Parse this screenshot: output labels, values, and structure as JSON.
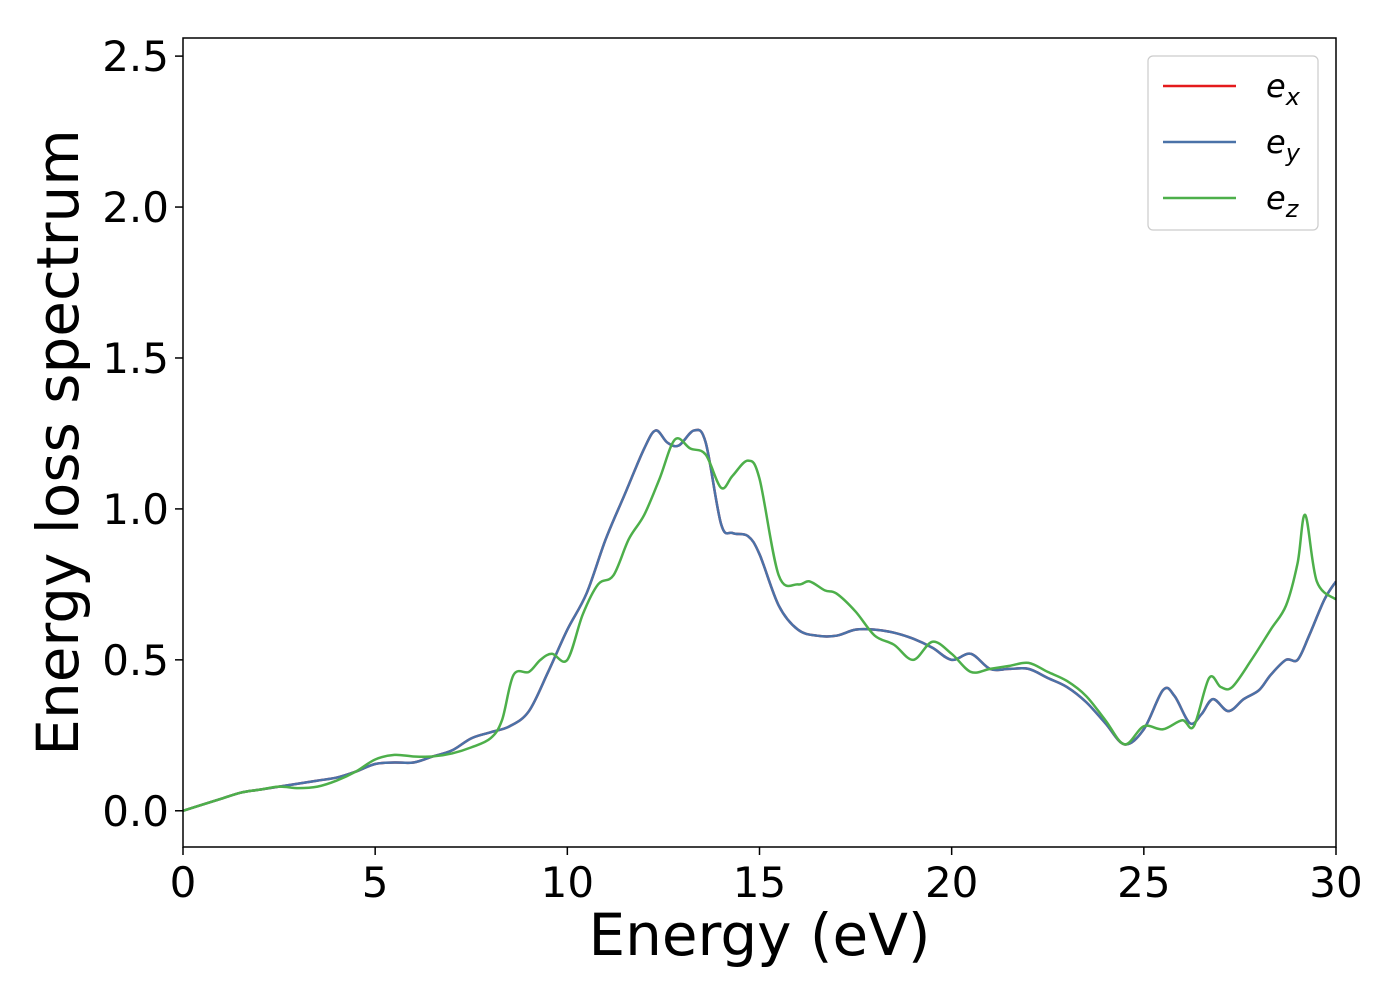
{
  "chart_data": {
    "type": "line",
    "title": "",
    "xlabel": "Energy (eV)",
    "ylabel": "Energy loss spectrum",
    "xlim": [
      0,
      30
    ],
    "ylim": [
      -0.12,
      2.56
    ],
    "xticks": [
      0,
      5,
      10,
      15,
      20,
      25,
      30
    ],
    "xtick_labels": [
      "0",
      "5",
      "10",
      "15",
      "20",
      "25",
      "30"
    ],
    "yticks": [
      0.0,
      0.5,
      1.0,
      1.5,
      2.0,
      2.5
    ],
    "ytick_labels": [
      "0.0",
      "0.5",
      "1.0",
      "1.5",
      "2.0",
      "2.5"
    ],
    "grid": false,
    "legend_position": "top-right",
    "series": [
      {
        "name": "e_x",
        "label_base": "e",
        "label_sub": "x",
        "color": "#e41a1c",
        "x": [
          0,
          0.5,
          1,
          1.5,
          2,
          2.5,
          3,
          3.5,
          4,
          4.5,
          5,
          5.5,
          6,
          6.5,
          7,
          7.5,
          8,
          8.5,
          9,
          9.5,
          10,
          10.5,
          11,
          11.5,
          12,
          12.3,
          12.6,
          12.9,
          13.3,
          13.6,
          14,
          14.3,
          14.7,
          15,
          15.5,
          16,
          16.5,
          17,
          17.5,
          18,
          18.5,
          19,
          19.5,
          20,
          20.5,
          21,
          21.5,
          22,
          22.5,
          23,
          23.5,
          24,
          24.5,
          25,
          25.5,
          25.8,
          26.2,
          26.5,
          26.8,
          27.2,
          27.6,
          28,
          28.3,
          28.7,
          29,
          29.3,
          29.7,
          30
        ],
        "y": [
          0.0,
          0.02,
          0.04,
          0.06,
          0.07,
          0.08,
          0.09,
          0.1,
          0.11,
          0.13,
          0.155,
          0.16,
          0.16,
          0.18,
          0.2,
          0.24,
          0.26,
          0.28,
          0.33,
          0.46,
          0.6,
          0.72,
          0.9,
          1.05,
          1.2,
          1.26,
          1.22,
          1.21,
          1.26,
          1.22,
          0.95,
          0.92,
          0.91,
          0.85,
          0.68,
          0.6,
          0.58,
          0.58,
          0.6,
          0.6,
          0.59,
          0.57,
          0.54,
          0.5,
          0.52,
          0.47,
          0.47,
          0.47,
          0.44,
          0.41,
          0.36,
          0.29,
          0.22,
          0.27,
          0.4,
          0.38,
          0.29,
          0.32,
          0.37,
          0.33,
          0.37,
          0.4,
          0.45,
          0.5,
          0.5,
          0.58,
          0.7,
          0.76
        ]
      },
      {
        "name": "e_y",
        "label_base": "e",
        "label_sub": "y",
        "color": "#4a72a8",
        "x": [
          0,
          0.5,
          1,
          1.5,
          2,
          2.5,
          3,
          3.5,
          4,
          4.5,
          5,
          5.5,
          6,
          6.5,
          7,
          7.5,
          8,
          8.5,
          9,
          9.5,
          10,
          10.5,
          11,
          11.5,
          12,
          12.3,
          12.6,
          12.9,
          13.3,
          13.6,
          14,
          14.3,
          14.7,
          15,
          15.5,
          16,
          16.5,
          17,
          17.5,
          18,
          18.5,
          19,
          19.5,
          20,
          20.5,
          21,
          21.5,
          22,
          22.5,
          23,
          23.5,
          24,
          24.5,
          25,
          25.5,
          25.8,
          26.2,
          26.5,
          26.8,
          27.2,
          27.6,
          28,
          28.3,
          28.7,
          29,
          29.3,
          29.7,
          30
        ],
        "y": [
          0.0,
          0.02,
          0.04,
          0.06,
          0.07,
          0.08,
          0.09,
          0.1,
          0.11,
          0.13,
          0.155,
          0.16,
          0.16,
          0.18,
          0.2,
          0.24,
          0.26,
          0.28,
          0.33,
          0.46,
          0.6,
          0.72,
          0.9,
          1.05,
          1.2,
          1.26,
          1.22,
          1.21,
          1.26,
          1.22,
          0.95,
          0.92,
          0.91,
          0.85,
          0.68,
          0.6,
          0.58,
          0.58,
          0.6,
          0.6,
          0.59,
          0.57,
          0.54,
          0.5,
          0.52,
          0.47,
          0.47,
          0.47,
          0.44,
          0.41,
          0.36,
          0.29,
          0.22,
          0.27,
          0.4,
          0.38,
          0.29,
          0.32,
          0.37,
          0.33,
          0.37,
          0.4,
          0.45,
          0.5,
          0.5,
          0.58,
          0.7,
          0.76
        ]
      },
      {
        "name": "e_z",
        "label_base": "e",
        "label_sub": "z",
        "color": "#4daf4a",
        "x": [
          0,
          0.5,
          1,
          1.5,
          2,
          2.5,
          3,
          3.5,
          4,
          4.5,
          5,
          5.5,
          6,
          6.5,
          7,
          7.5,
          8,
          8.3,
          8.6,
          9,
          9.3,
          9.6,
          10,
          10.4,
          10.8,
          11.2,
          11.6,
          12,
          12.4,
          12.8,
          13.2,
          13.6,
          14,
          14.3,
          14.7,
          15,
          15.5,
          16,
          16.3,
          16.7,
          17,
          17.5,
          18,
          18.5,
          19,
          19.5,
          20,
          20.5,
          21,
          21.5,
          22,
          22.5,
          23,
          23.5,
          24,
          24.5,
          25,
          25.5,
          26,
          26.3,
          26.7,
          27,
          27.3,
          27.8,
          28.3,
          28.7,
          29,
          29.2,
          29.5,
          30
        ],
        "y": [
          0.0,
          0.02,
          0.04,
          0.06,
          0.07,
          0.08,
          0.075,
          0.08,
          0.1,
          0.13,
          0.17,
          0.185,
          0.18,
          0.18,
          0.19,
          0.21,
          0.24,
          0.3,
          0.45,
          0.46,
          0.5,
          0.52,
          0.5,
          0.65,
          0.75,
          0.78,
          0.9,
          0.98,
          1.1,
          1.23,
          1.2,
          1.18,
          1.07,
          1.11,
          1.16,
          1.1,
          0.78,
          0.75,
          0.76,
          0.73,
          0.72,
          0.66,
          0.58,
          0.55,
          0.5,
          0.56,
          0.52,
          0.46,
          0.47,
          0.48,
          0.49,
          0.46,
          0.43,
          0.38,
          0.3,
          0.22,
          0.28,
          0.27,
          0.3,
          0.28,
          0.44,
          0.41,
          0.41,
          0.5,
          0.6,
          0.68,
          0.82,
          0.98,
          0.76,
          0.7
        ]
      }
    ]
  }
}
